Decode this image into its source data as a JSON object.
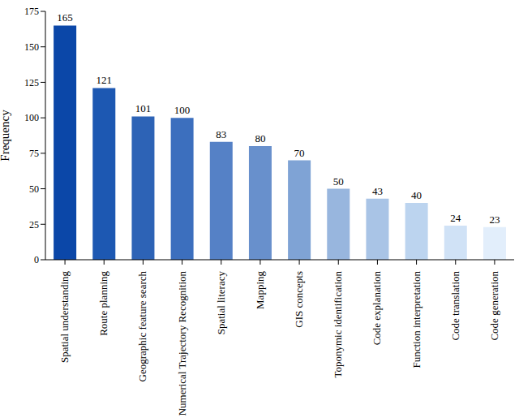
{
  "chart_data": {
    "type": "bar",
    "ylabel": "Frequency",
    "categories": [
      "Spatial understanding",
      "Route planning",
      "Geographic feature search",
      "Numerical Trajectory Recognition",
      "Spatial literacy",
      "Mapping",
      "GIS concepts",
      "Toponymic identification",
      "Code explanation",
      "Function interpretation",
      "Code translation",
      "Code generation"
    ],
    "values": [
      165,
      121,
      101,
      100,
      83,
      80,
      70,
      50,
      43,
      40,
      24,
      23
    ],
    "colors": [
      "#0b47a8",
      "#1d58b2",
      "#2d63b6",
      "#3c6fbe",
      "#5581c6",
      "#6890cc",
      "#7fa3d5",
      "#98b6de",
      "#a9c4e6",
      "#bcd4ef",
      "#d0e2f6",
      "#e2eefb"
    ],
    "ylim": [
      0,
      175
    ],
    "yticks": [
      0,
      25,
      50,
      75,
      100,
      125,
      150,
      175
    ],
    "grid": false,
    "data_labels": true
  }
}
